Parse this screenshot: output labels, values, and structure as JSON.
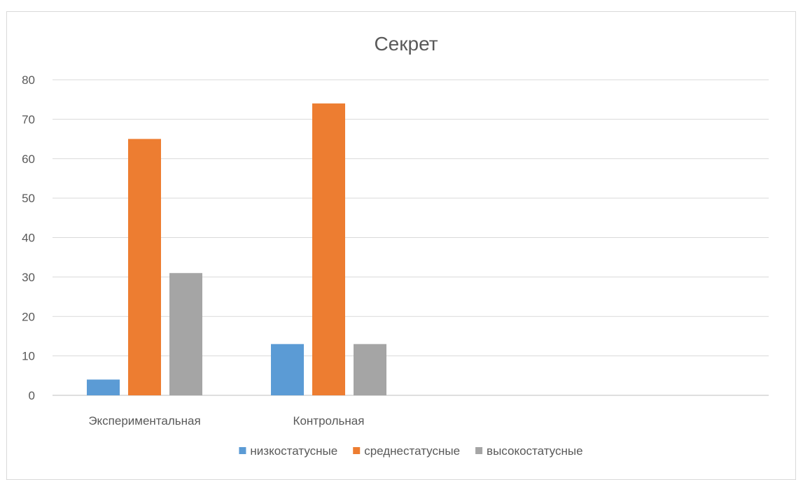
{
  "chart_data": {
    "type": "bar",
    "title": "Секрет",
    "categories": [
      "Экспериментальная",
      "Контрольная"
    ],
    "series": [
      {
        "name": "низкостатусные",
        "values": [
          4,
          13
        ],
        "color": "#5b9bd5"
      },
      {
        "name": "среднестатусные",
        "values": [
          65,
          74
        ],
        "color": "#ed7d31"
      },
      {
        "name": "высокостатусные",
        "values": [
          31,
          13
        ],
        "color": "#a5a5a5"
      }
    ],
    "ylim": [
      0,
      80
    ],
    "yticks": [
      0,
      10,
      20,
      30,
      40,
      50,
      60,
      70,
      80
    ],
    "grid": true,
    "legend_position": "bottom"
  }
}
